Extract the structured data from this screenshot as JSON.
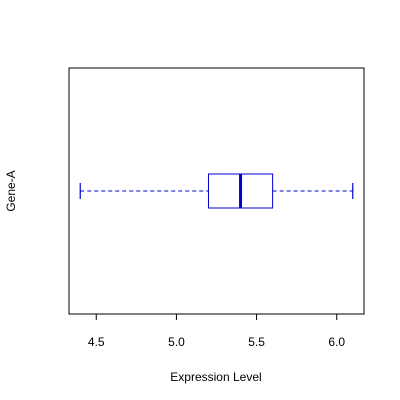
{
  "chart_data": {
    "type": "boxplot",
    "orientation": "horizontal",
    "title": "",
    "xlabel": "Expression Level",
    "ylabel": "Gene-A",
    "xlim": [
      4.33,
      6.17
    ],
    "xticks": [
      4.5,
      5.0,
      5.5,
      6.0
    ],
    "xtick_labels": [
      "4.5",
      "5.0",
      "5.5",
      "6.0"
    ],
    "grid": false,
    "series": [
      {
        "whisker_low": 4.4,
        "q1": 5.2,
        "median": 5.4,
        "q3": 5.6,
        "whisker_high": 6.1
      }
    ],
    "colors": {
      "box": "#0000cc",
      "frame": "#000000"
    }
  }
}
